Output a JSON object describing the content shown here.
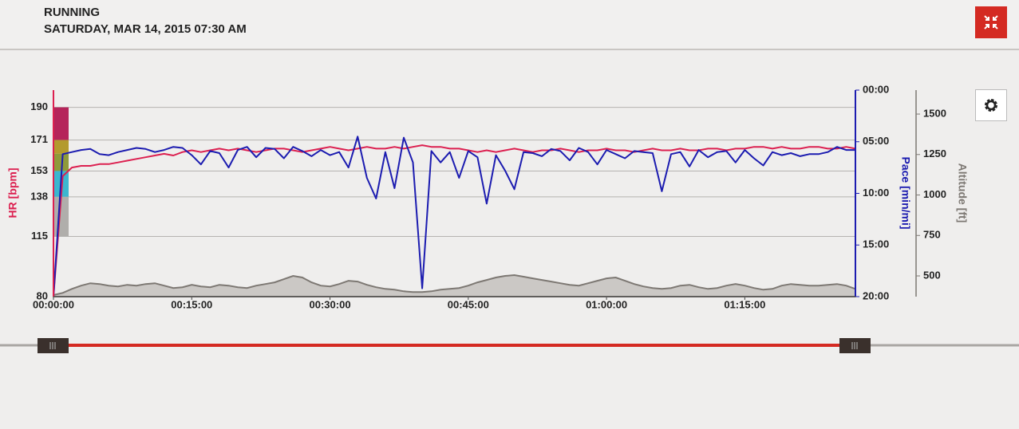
{
  "header": {
    "title": "RUNNING",
    "subtitle": "SATURDAY, MAR 14, 2015 07:30 AM"
  },
  "chart_data": {
    "type": "line",
    "x": [
      0,
      1,
      2,
      3,
      4,
      5,
      6,
      7,
      8,
      9,
      10,
      11,
      12,
      13,
      14,
      15,
      16,
      17,
      18,
      19,
      20,
      21,
      22,
      23,
      24,
      25,
      26,
      27,
      28,
      29,
      30,
      31,
      32,
      33,
      34,
      35,
      36,
      37,
      38,
      39,
      40,
      41,
      42,
      43,
      44,
      45,
      46,
      47,
      48,
      49,
      50,
      51,
      52,
      53,
      54,
      55,
      56,
      57,
      58,
      59,
      60,
      61,
      62,
      63,
      64,
      65,
      66,
      67,
      68,
      69,
      70,
      71,
      72,
      73,
      74,
      75,
      76,
      77,
      78,
      79,
      80,
      81,
      82,
      83,
      84,
      85,
      86,
      87
    ],
    "xlim": [
      0,
      87
    ],
    "xticks": [
      {
        "value": 0,
        "label": "00:00:00"
      },
      {
        "value": 15,
        "label": "00:15:00"
      },
      {
        "value": 30,
        "label": "00:30:00"
      },
      {
        "value": 45,
        "label": "00:45:00"
      },
      {
        "value": 60,
        "label": "01:00:00"
      },
      {
        "value": 75,
        "label": "01:15:00"
      }
    ],
    "ylim": [
      80,
      200
    ],
    "yticks": [
      80,
      115,
      138,
      153,
      171,
      190
    ],
    "y2lim": [
      20,
      0
    ],
    "y2ticks": [
      {
        "value": 0,
        "label": "00:00"
      },
      {
        "value": 5,
        "label": "05:00"
      },
      {
        "value": 10,
        "label": "10:00"
      },
      {
        "value": 15,
        "label": "15:00"
      },
      {
        "value": 20,
        "label": "20:00"
      }
    ],
    "y3lim": [
      372,
      1648
    ],
    "y3ticks": [
      500,
      750,
      1000,
      1250,
      1500
    ],
    "grid": true,
    "hr_zones": [
      {
        "from": 171,
        "to": 190,
        "color": "#b5245a"
      },
      {
        "from": 163,
        "to": 171,
        "color": "#b39a2e"
      },
      {
        "from": 153,
        "to": 163,
        "color": "#8f9a3a"
      },
      {
        "from": 138,
        "to": 153,
        "color": "#3bb6cf"
      },
      {
        "from": 115,
        "to": 138,
        "color": "#b0aeab"
      }
    ],
    "series": [
      {
        "name": "Altitude [ft]",
        "color": "#7d7873",
        "fill": "#cbc8c5",
        "axis": "y3",
        "values": [
          382,
          395,
          420,
          440,
          455,
          450,
          440,
          435,
          445,
          440,
          450,
          455,
          440,
          425,
          430,
          445,
          435,
          430,
          445,
          440,
          430,
          425,
          440,
          450,
          460,
          480,
          500,
          490,
          460,
          440,
          435,
          450,
          470,
          465,
          445,
          430,
          420,
          415,
          405,
          400,
          400,
          405,
          415,
          420,
          425,
          440,
          460,
          475,
          490,
          500,
          505,
          495,
          485,
          475,
          465,
          455,
          445,
          440,
          455,
          470,
          485,
          490,
          470,
          450,
          435,
          425,
          420,
          425,
          440,
          445,
          430,
          420,
          425,
          440,
          450,
          440,
          425,
          415,
          420,
          440,
          450,
          445,
          440,
          440,
          445,
          450,
          440,
          420
        ]
      },
      {
        "name": "HR [bpm]",
        "color": "#dc2050",
        "axis": "y",
        "values": [
          80,
          150,
          155,
          156,
          156,
          157,
          157,
          158,
          159,
          160,
          161,
          162,
          163,
          162,
          164,
          165,
          164,
          165,
          166,
          165,
          166,
          165,
          164,
          165,
          166,
          166,
          165,
          164,
          165,
          166,
          167,
          166,
          165,
          166,
          167,
          166,
          166,
          167,
          166,
          167,
          168,
          167,
          167,
          166,
          166,
          165,
          164,
          165,
          164,
          165,
          166,
          165,
          164,
          165,
          165,
          166,
          165,
          164,
          165,
          165,
          166,
          165,
          165,
          164,
          165,
          166,
          165,
          165,
          166,
          165,
          165,
          166,
          166,
          165,
          166,
          166,
          167,
          167,
          166,
          167,
          166,
          166,
          167,
          167,
          166,
          166,
          167,
          166
        ]
      },
      {
        "name": "Pace [min/mi]",
        "color": "#1c1cb0",
        "axis": "y2",
        "values": [
          20,
          6.2,
          6.0,
          5.8,
          5.7,
          6.2,
          6.3,
          6.0,
          5.8,
          5.6,
          5.7,
          6.0,
          5.8,
          5.5,
          5.6,
          6.3,
          7.2,
          5.9,
          6.1,
          7.5,
          5.8,
          5.5,
          6.5,
          5.6,
          5.7,
          6.6,
          5.5,
          5.9,
          6.4,
          5.8,
          6.3,
          6.0,
          7.5,
          4.5,
          8.5,
          10.5,
          6.0,
          9.5,
          4.6,
          7.0,
          19.2,
          5.9,
          7.0,
          6.0,
          8.5,
          5.9,
          6.5,
          11.0,
          6.3,
          7.8,
          9.6,
          6.0,
          6.1,
          6.4,
          5.7,
          5.9,
          6.8,
          5.6,
          6.0,
          7.2,
          5.8,
          6.2,
          6.6,
          5.9,
          6.0,
          6.1,
          9.8,
          6.2,
          6.0,
          7.4,
          5.8,
          6.5,
          6.0,
          5.9,
          7.0,
          5.8,
          6.6,
          7.3,
          6.0,
          6.3,
          6.1,
          6.4,
          6.2,
          6.2,
          6.0,
          5.5,
          5.8,
          5.8
        ]
      }
    ]
  }
}
